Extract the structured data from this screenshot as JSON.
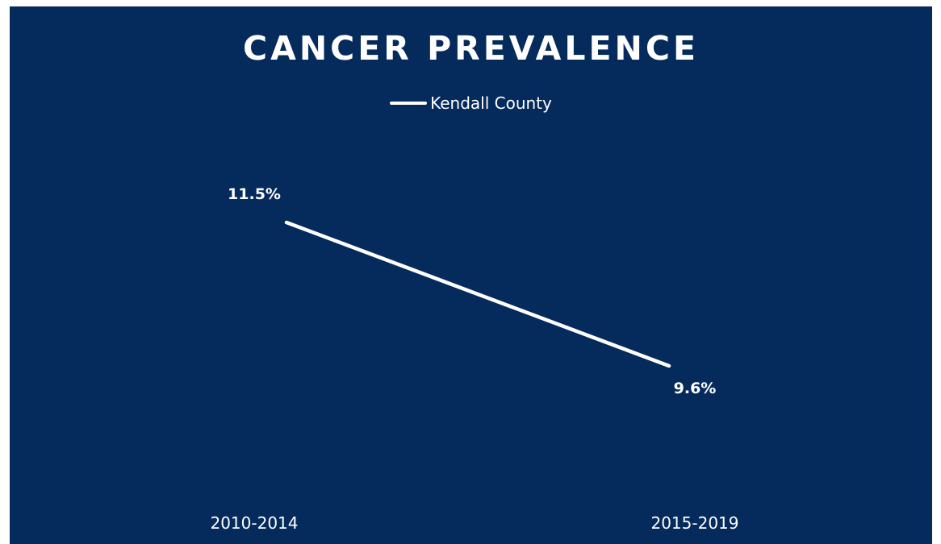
{
  "chart_data": {
    "type": "line",
    "title": "CANCER PREVALENCE",
    "categories": [
      "2010-2014",
      "2015-2019"
    ],
    "series": [
      {
        "name": "Kendall County",
        "values": [
          11.5,
          9.6
        ],
        "labels": [
          "11.5%",
          "9.6%"
        ]
      }
    ],
    "legend_position": "top",
    "grid": false,
    "drop_lines": true,
    "colors": {
      "background": "#052b5c",
      "line": "#ffffff",
      "text": "#ffffff"
    }
  }
}
